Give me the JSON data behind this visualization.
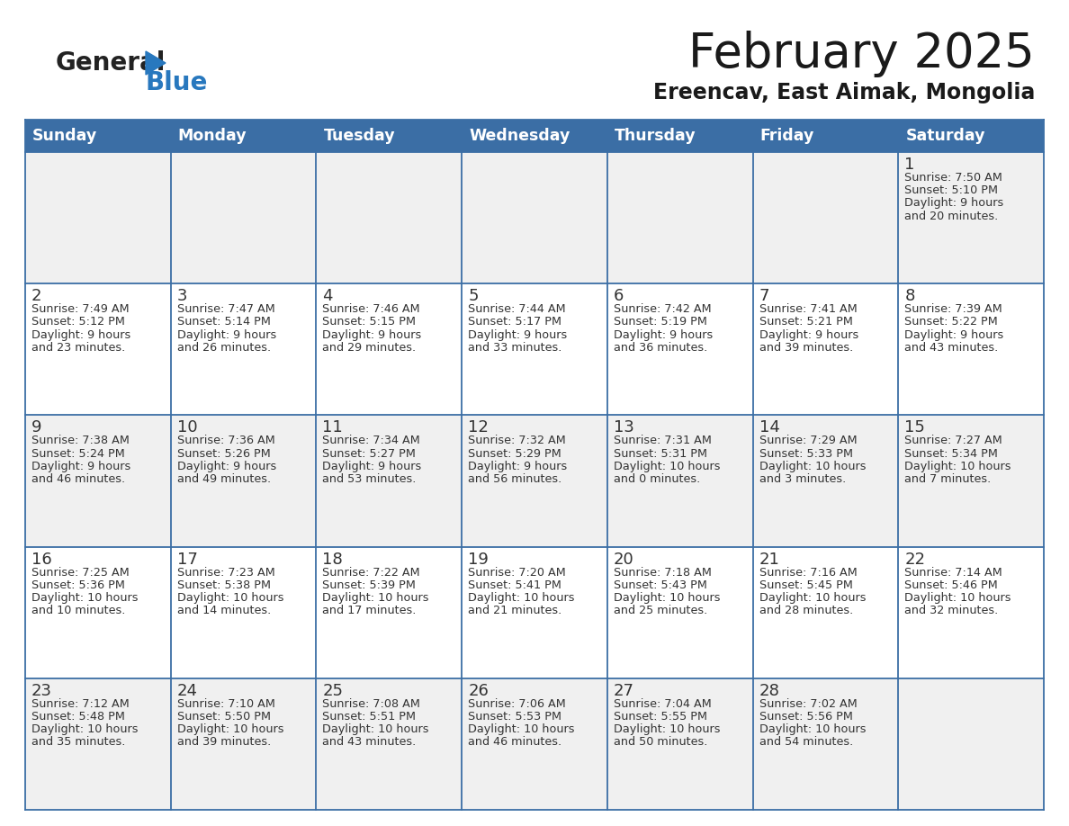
{
  "title": "February 2025",
  "subtitle": "Ereencav, East Aimak, Mongolia",
  "days_of_week": [
    "Sunday",
    "Monday",
    "Tuesday",
    "Wednesday",
    "Thursday",
    "Friday",
    "Saturday"
  ],
  "header_bg": "#3B6EA5",
  "header_text": "#FFFFFF",
  "cell_bg_odd": "#F0F0F0",
  "cell_bg_even": "#FFFFFF",
  "cell_border": "#3B6EA5",
  "day_number_color": "#333333",
  "text_color": "#333333",
  "logo_general_color": "#222222",
  "logo_blue_color": "#2878BE",
  "logo_triangle_color": "#2878BE",
  "title_color": "#1a1a1a",
  "subtitle_color": "#1a1a1a",
  "calendar_data": [
    [
      {
        "day": null,
        "sunrise": null,
        "sunset": null,
        "daylight": null
      },
      {
        "day": null,
        "sunrise": null,
        "sunset": null,
        "daylight": null
      },
      {
        "day": null,
        "sunrise": null,
        "sunset": null,
        "daylight": null
      },
      {
        "day": null,
        "sunrise": null,
        "sunset": null,
        "daylight": null
      },
      {
        "day": null,
        "sunrise": null,
        "sunset": null,
        "daylight": null
      },
      {
        "day": null,
        "sunrise": null,
        "sunset": null,
        "daylight": null
      },
      {
        "day": 1,
        "sunrise": "7:50 AM",
        "sunset": "5:10 PM",
        "daylight_line1": "Daylight: 9 hours",
        "daylight_line2": "and 20 minutes."
      }
    ],
    [
      {
        "day": 2,
        "sunrise": "7:49 AM",
        "sunset": "5:12 PM",
        "daylight_line1": "Daylight: 9 hours",
        "daylight_line2": "and 23 minutes."
      },
      {
        "day": 3,
        "sunrise": "7:47 AM",
        "sunset": "5:14 PM",
        "daylight_line1": "Daylight: 9 hours",
        "daylight_line2": "and 26 minutes."
      },
      {
        "day": 4,
        "sunrise": "7:46 AM",
        "sunset": "5:15 PM",
        "daylight_line1": "Daylight: 9 hours",
        "daylight_line2": "and 29 minutes."
      },
      {
        "day": 5,
        "sunrise": "7:44 AM",
        "sunset": "5:17 PM",
        "daylight_line1": "Daylight: 9 hours",
        "daylight_line2": "and 33 minutes."
      },
      {
        "day": 6,
        "sunrise": "7:42 AM",
        "sunset": "5:19 PM",
        "daylight_line1": "Daylight: 9 hours",
        "daylight_line2": "and 36 minutes."
      },
      {
        "day": 7,
        "sunrise": "7:41 AM",
        "sunset": "5:21 PM",
        "daylight_line1": "Daylight: 9 hours",
        "daylight_line2": "and 39 minutes."
      },
      {
        "day": 8,
        "sunrise": "7:39 AM",
        "sunset": "5:22 PM",
        "daylight_line1": "Daylight: 9 hours",
        "daylight_line2": "and 43 minutes."
      }
    ],
    [
      {
        "day": 9,
        "sunrise": "7:38 AM",
        "sunset": "5:24 PM",
        "daylight_line1": "Daylight: 9 hours",
        "daylight_line2": "and 46 minutes."
      },
      {
        "day": 10,
        "sunrise": "7:36 AM",
        "sunset": "5:26 PM",
        "daylight_line1": "Daylight: 9 hours",
        "daylight_line2": "and 49 minutes."
      },
      {
        "day": 11,
        "sunrise": "7:34 AM",
        "sunset": "5:27 PM",
        "daylight_line1": "Daylight: 9 hours",
        "daylight_line2": "and 53 minutes."
      },
      {
        "day": 12,
        "sunrise": "7:32 AM",
        "sunset": "5:29 PM",
        "daylight_line1": "Daylight: 9 hours",
        "daylight_line2": "and 56 minutes."
      },
      {
        "day": 13,
        "sunrise": "7:31 AM",
        "sunset": "5:31 PM",
        "daylight_line1": "Daylight: 10 hours",
        "daylight_line2": "and 0 minutes."
      },
      {
        "day": 14,
        "sunrise": "7:29 AM",
        "sunset": "5:33 PM",
        "daylight_line1": "Daylight: 10 hours",
        "daylight_line2": "and 3 minutes."
      },
      {
        "day": 15,
        "sunrise": "7:27 AM",
        "sunset": "5:34 PM",
        "daylight_line1": "Daylight: 10 hours",
        "daylight_line2": "and 7 minutes."
      }
    ],
    [
      {
        "day": 16,
        "sunrise": "7:25 AM",
        "sunset": "5:36 PM",
        "daylight_line1": "Daylight: 10 hours",
        "daylight_line2": "and 10 minutes."
      },
      {
        "day": 17,
        "sunrise": "7:23 AM",
        "sunset": "5:38 PM",
        "daylight_line1": "Daylight: 10 hours",
        "daylight_line2": "and 14 minutes."
      },
      {
        "day": 18,
        "sunrise": "7:22 AM",
        "sunset": "5:39 PM",
        "daylight_line1": "Daylight: 10 hours",
        "daylight_line2": "and 17 minutes."
      },
      {
        "day": 19,
        "sunrise": "7:20 AM",
        "sunset": "5:41 PM",
        "daylight_line1": "Daylight: 10 hours",
        "daylight_line2": "and 21 minutes."
      },
      {
        "day": 20,
        "sunrise": "7:18 AM",
        "sunset": "5:43 PM",
        "daylight_line1": "Daylight: 10 hours",
        "daylight_line2": "and 25 minutes."
      },
      {
        "day": 21,
        "sunrise": "7:16 AM",
        "sunset": "5:45 PM",
        "daylight_line1": "Daylight: 10 hours",
        "daylight_line2": "and 28 minutes."
      },
      {
        "day": 22,
        "sunrise": "7:14 AM",
        "sunset": "5:46 PM",
        "daylight_line1": "Daylight: 10 hours",
        "daylight_line2": "and 32 minutes."
      }
    ],
    [
      {
        "day": 23,
        "sunrise": "7:12 AM",
        "sunset": "5:48 PM",
        "daylight_line1": "Daylight: 10 hours",
        "daylight_line2": "and 35 minutes."
      },
      {
        "day": 24,
        "sunrise": "7:10 AM",
        "sunset": "5:50 PM",
        "daylight_line1": "Daylight: 10 hours",
        "daylight_line2": "and 39 minutes."
      },
      {
        "day": 25,
        "sunrise": "7:08 AM",
        "sunset": "5:51 PM",
        "daylight_line1": "Daylight: 10 hours",
        "daylight_line2": "and 43 minutes."
      },
      {
        "day": 26,
        "sunrise": "7:06 AM",
        "sunset": "5:53 PM",
        "daylight_line1": "Daylight: 10 hours",
        "daylight_line2": "and 46 minutes."
      },
      {
        "day": 27,
        "sunrise": "7:04 AM",
        "sunset": "5:55 PM",
        "daylight_line1": "Daylight: 10 hours",
        "daylight_line2": "and 50 minutes."
      },
      {
        "day": 28,
        "sunrise": "7:02 AM",
        "sunset": "5:56 PM",
        "daylight_line1": "Daylight: 10 hours",
        "daylight_line2": "and 54 minutes."
      },
      {
        "day": null,
        "sunrise": null,
        "sunset": null,
        "daylight_line1": null,
        "daylight_line2": null
      }
    ]
  ]
}
